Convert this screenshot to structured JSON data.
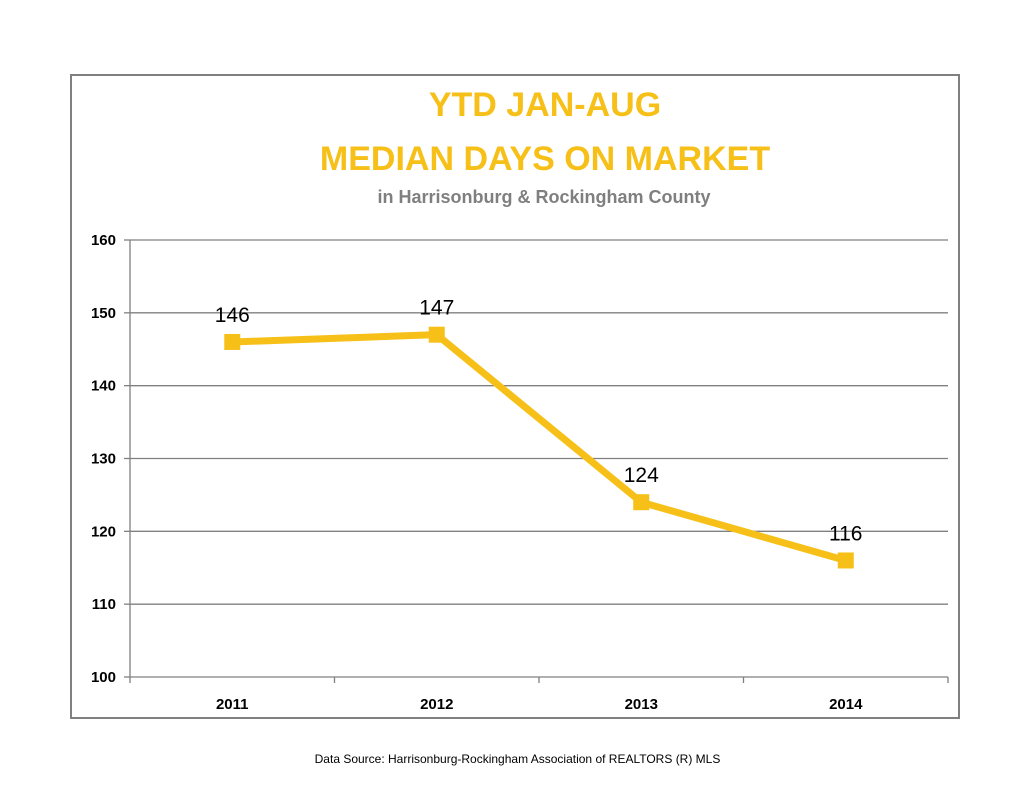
{
  "chart_data": {
    "type": "line",
    "title": [
      "YTD JAN-AUG",
      "MEDIAN DAYS ON MARKET"
    ],
    "subtitle": "in Harrisonburg  & Rockingham County",
    "xlabel": "",
    "ylabel": "",
    "categories": [
      "2011",
      "2012",
      "2013",
      "2014"
    ],
    "series": [
      {
        "values": [
          146,
          147,
          124,
          116
        ],
        "data_labels": [
          "146",
          "147",
          "124",
          "116"
        ]
      }
    ],
    "ylim": [
      100,
      160
    ],
    "yticks": [
      "100",
      "110",
      "120",
      "130",
      "140",
      "150",
      "160"
    ],
    "grid": "horizontal",
    "legend": "none",
    "colors": {
      "line": "#F6C018",
      "title": "#F6C018",
      "subtitle": "#7F7F7F",
      "grid": "#808080",
      "frame": "#808080"
    }
  },
  "footer": {
    "source": "Data Source: Harrisonburg-Rockingham Association of REALTORS (R) MLS"
  }
}
